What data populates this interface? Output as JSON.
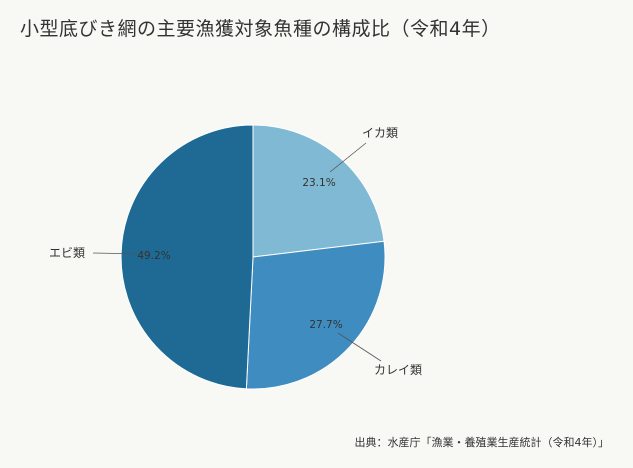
{
  "title": "小型底びき網の主要漁獲対象魚種の構成比（令和4年）",
  "source": "出典：水産庁「漁業・養殖業生産統計（令和4年）」",
  "chart_data": {
    "type": "pie",
    "title": "小型底びき網の主要漁獲対象魚種の構成比（令和4年）",
    "slices": [
      {
        "label": "イカ類",
        "value": 23.1,
        "value_label": "23.1%",
        "color": "#80b9d3"
      },
      {
        "label": "カレイ類",
        "value": 27.7,
        "value_label": "27.7%",
        "color": "#3f8cc0"
      },
      {
        "label": "エビ類",
        "value": 49.2,
        "value_label": "49.2%",
        "color": "#1e6a94"
      }
    ]
  }
}
